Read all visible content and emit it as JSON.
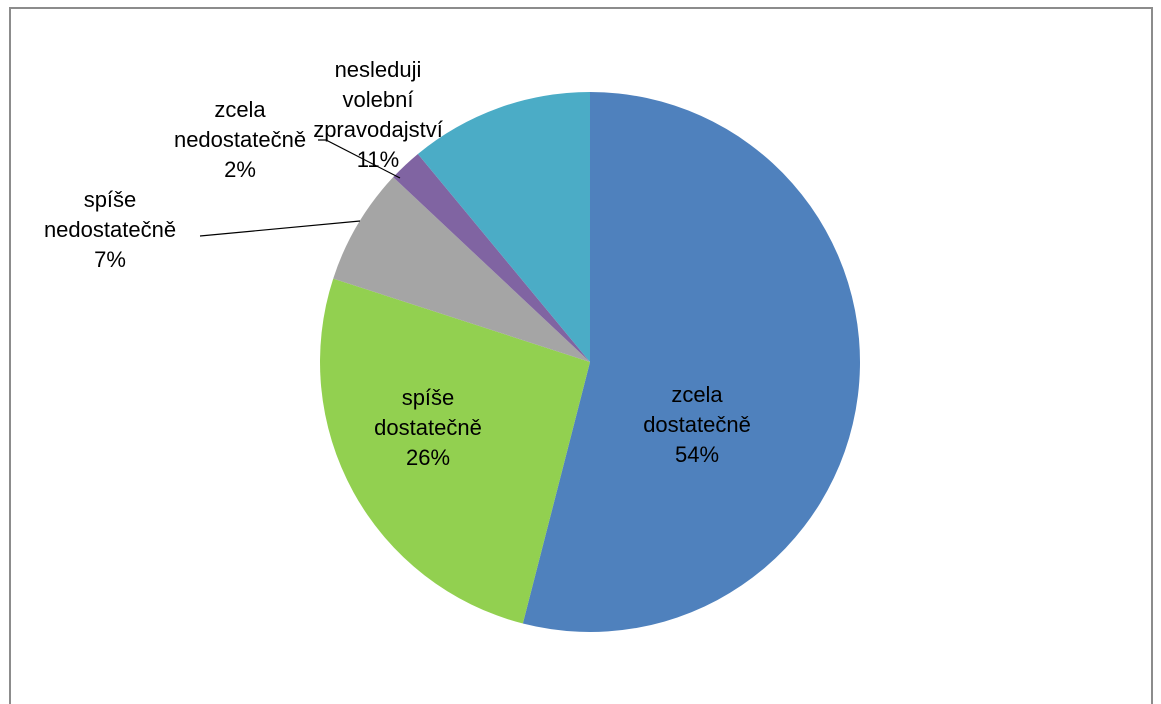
{
  "chart_data": {
    "type": "pie",
    "categories": [
      "zcela dostatečně",
      "spíše dostatečně",
      "spíše nedostatečně",
      "zcela nedostatečně",
      "nesleduji volební zpravodajství"
    ],
    "values": [
      54,
      26,
      7,
      2,
      11
    ],
    "value_labels": [
      "54%",
      "26%",
      "7%",
      "2%",
      "11%"
    ],
    "colors": [
      "#4f81bd",
      "#92d050",
      "#a5a5a5",
      "#8064a2",
      "#4bacc6"
    ]
  }
}
